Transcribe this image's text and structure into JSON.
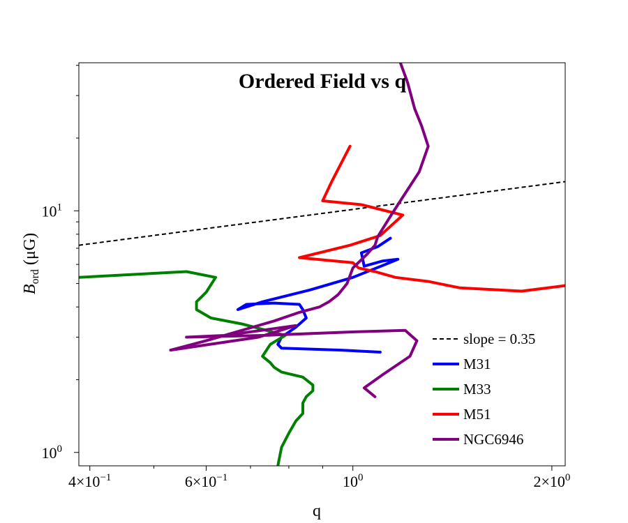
{
  "chart_data": {
    "type": "line",
    "title": "Ordered Field vs q",
    "xlabel": "q",
    "ylabel_main": "B",
    "ylabel_sub": "ord",
    "ylabel_unit": "(μG)",
    "xscale": "log",
    "yscale": "log",
    "xlim": [
      0.385,
      2.095
    ],
    "ylim": [
      0.88,
      41
    ],
    "grid": false,
    "legend_position": "lower-right",
    "x_ticks": [
      {
        "value": 0.4,
        "base": "4×10",
        "exp": "−1"
      },
      {
        "value": 0.6,
        "base": "6×10",
        "exp": "−1"
      },
      {
        "value": 1.0,
        "base": "10",
        "exp": "0"
      },
      {
        "value": 2.0,
        "base": "2×10",
        "exp": "0"
      }
    ],
    "y_ticks": [
      {
        "value": 1,
        "base": "10",
        "exp": "0"
      },
      {
        "value": 10,
        "base": "10",
        "exp": "1"
      }
    ],
    "series": [
      {
        "name": "slope = 0.35",
        "color": "#000000",
        "dashed": true,
        "width": 2,
        "points": [
          [
            0.385,
            7.2
          ],
          [
            2.095,
            13.2
          ]
        ]
      },
      {
        "name": "M31",
        "color": "#0000ff",
        "dashed": false,
        "width": 4,
        "points": [
          [
            1.1,
            2.6
          ],
          [
            0.96,
            2.65
          ],
          [
            0.78,
            2.7
          ],
          [
            0.77,
            2.8
          ],
          [
            0.78,
            3.0
          ],
          [
            0.82,
            3.3
          ],
          [
            0.85,
            3.6
          ],
          [
            0.84,
            3.9
          ],
          [
            0.83,
            4.1
          ],
          [
            0.76,
            4.15
          ],
          [
            0.69,
            4.1
          ],
          [
            0.67,
            3.9
          ],
          [
            0.73,
            4.2
          ],
          [
            0.86,
            4.7
          ],
          [
            1.0,
            5.3
          ],
          [
            1.12,
            6.0
          ],
          [
            1.17,
            6.3
          ],
          [
            1.11,
            6.2
          ],
          [
            1.04,
            5.9
          ],
          [
            1.03,
            6.7
          ],
          [
            1.09,
            7.1
          ],
          [
            1.14,
            7.7
          ]
        ]
      },
      {
        "name": "M33",
        "color": "#008000",
        "dashed": false,
        "width": 4,
        "points": [
          [
            0.385,
            5.3
          ],
          [
            0.56,
            5.6
          ],
          [
            0.62,
            5.3
          ],
          [
            0.6,
            4.6
          ],
          [
            0.58,
            4.2
          ],
          [
            0.58,
            3.9
          ],
          [
            0.61,
            3.6
          ],
          [
            0.68,
            3.4
          ],
          [
            0.74,
            3.2
          ],
          [
            0.79,
            3.05
          ],
          [
            0.75,
            2.8
          ],
          [
            0.73,
            2.5
          ],
          [
            0.75,
            2.35
          ],
          [
            0.76,
            2.25
          ],
          [
            0.78,
            2.15
          ],
          [
            0.84,
            2.05
          ],
          [
            0.87,
            1.9
          ],
          [
            0.87,
            1.8
          ],
          [
            0.85,
            1.7
          ],
          [
            0.84,
            1.6
          ],
          [
            0.84,
            1.45
          ],
          [
            0.82,
            1.35
          ],
          [
            0.8,
            1.2
          ],
          [
            0.78,
            1.05
          ],
          [
            0.77,
            0.88
          ]
        ]
      },
      {
        "name": "M51",
        "color": "#ff0000",
        "dashed": false,
        "width": 4,
        "points": [
          [
            0.99,
            18.5
          ],
          [
            0.93,
            13.3
          ],
          [
            0.9,
            11.0
          ],
          [
            1.03,
            10.6
          ],
          [
            1.19,
            9.6
          ],
          [
            1.1,
            7.9
          ],
          [
            0.99,
            7.2
          ],
          [
            0.83,
            6.4
          ],
          [
            0.88,
            6.3
          ],
          [
            1.0,
            6.1
          ],
          [
            1.02,
            5.8
          ],
          [
            1.08,
            5.6
          ],
          [
            1.16,
            5.3
          ],
          [
            1.3,
            5.1
          ],
          [
            1.45,
            4.8
          ],
          [
            1.8,
            4.65
          ],
          [
            2.095,
            4.9
          ]
        ]
      },
      {
        "name": "NGC6946",
        "color": "#800080",
        "dashed": false,
        "width": 4,
        "points": [
          [
            1.18,
            41
          ],
          [
            1.21,
            34
          ],
          [
            1.24,
            26.5
          ],
          [
            1.27,
            22.5
          ],
          [
            1.3,
            18.5
          ],
          [
            1.26,
            14.5
          ],
          [
            1.18,
            11.0
          ],
          [
            1.14,
            9.5
          ],
          [
            1.09,
            7.8
          ],
          [
            1.08,
            7.2
          ],
          [
            1.05,
            6.6
          ],
          [
            1.0,
            5.8
          ],
          [
            0.98,
            5.0
          ],
          [
            0.95,
            4.5
          ],
          [
            0.92,
            4.2
          ],
          [
            0.89,
            4.0
          ],
          [
            0.83,
            3.8
          ],
          [
            0.76,
            3.5
          ],
          [
            0.6,
            2.9
          ],
          [
            0.53,
            2.65
          ],
          [
            0.72,
            3.0
          ],
          [
            0.82,
            3.35
          ],
          [
            0.64,
            3.05
          ],
          [
            0.56,
            3.0
          ],
          [
            0.73,
            3.05
          ],
          [
            0.99,
            3.15
          ],
          [
            1.2,
            3.2
          ],
          [
            1.25,
            2.9
          ],
          [
            1.22,
            2.5
          ],
          [
            1.11,
            2.1
          ],
          [
            1.04,
            1.85
          ],
          [
            1.08,
            1.7
          ]
        ]
      }
    ]
  }
}
